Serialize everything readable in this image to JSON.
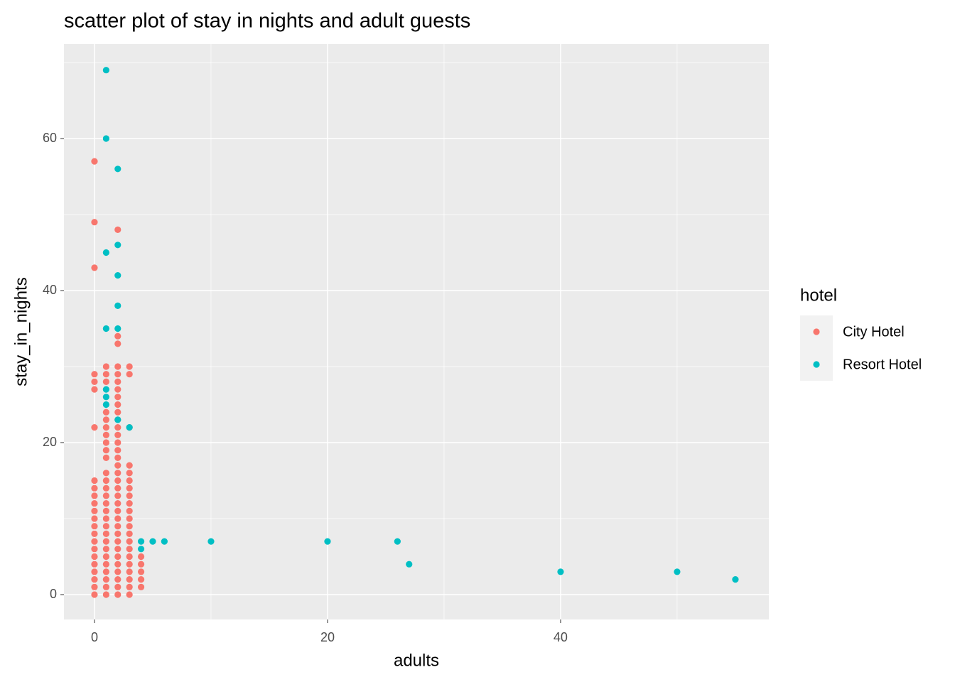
{
  "chart_data": {
    "type": "scatter",
    "title": "scatter plot of stay in nights and adult guests",
    "x_label": "adults",
    "y_label": "stay_in_nights",
    "legend_title": "hotel",
    "legend": "right",
    "grid": true,
    "xlim": [
      -2.62,
      57.87
    ],
    "ylim": [
      -3.27,
      72.43
    ],
    "xticks": [
      0,
      20,
      40
    ],
    "yticks": [
      0,
      20,
      40,
      60
    ],
    "series": [
      {
        "name": "City Hotel",
        "color": "#F8766D",
        "x": [
          0,
          0,
          0,
          0,
          0,
          0,
          0,
          0,
          0,
          0,
          0,
          0,
          0,
          0,
          0,
          0,
          0,
          0,
          0,
          0,
          0,
          0,
          0,
          1,
          1,
          1,
          1,
          1,
          1,
          1,
          1,
          1,
          1,
          1,
          1,
          1,
          1,
          1,
          1,
          1,
          1,
          1,
          1,
          1,
          1,
          1,
          1,
          1,
          1,
          1,
          2,
          2,
          2,
          2,
          2,
          2,
          2,
          2,
          2,
          2,
          2,
          2,
          2,
          2,
          2,
          2,
          2,
          2,
          2,
          2,
          2,
          2,
          2,
          2,
          2,
          2,
          2,
          2,
          2,
          2,
          2,
          2,
          2,
          2,
          3,
          3,
          3,
          3,
          3,
          3,
          3,
          3,
          3,
          3,
          3,
          3,
          3,
          3,
          3,
          3,
          3,
          3,
          3,
          3,
          3,
          4,
          4,
          4,
          4,
          4
        ],
        "y": [
          0,
          1,
          2,
          3,
          4,
          5,
          6,
          7,
          8,
          9,
          10,
          11,
          12,
          13,
          14,
          15,
          22,
          27,
          28,
          29,
          43,
          49,
          57,
          0,
          1,
          2,
          3,
          4,
          5,
          6,
          7,
          8,
          9,
          10,
          11,
          12,
          13,
          14,
          15,
          16,
          18,
          19,
          20,
          21,
          22,
          23,
          24,
          28,
          29,
          30,
          0,
          1,
          2,
          3,
          4,
          5,
          6,
          7,
          8,
          9,
          10,
          11,
          12,
          13,
          14,
          15,
          16,
          17,
          18,
          19,
          20,
          21,
          22,
          23,
          24,
          25,
          26,
          27,
          28,
          29,
          30,
          33,
          34,
          48,
          0,
          1,
          2,
          3,
          4,
          5,
          6,
          7,
          8,
          9,
          10,
          11,
          12,
          13,
          14,
          15,
          16,
          17,
          22,
          29,
          30,
          1,
          2,
          3,
          4,
          5
        ]
      },
      {
        "name": "Resort Hotel",
        "color": "#00BFC4",
        "x": [
          1,
          1,
          1,
          1,
          1,
          1,
          1,
          2,
          2,
          2,
          2,
          2,
          2,
          3,
          4,
          4,
          5,
          6,
          10,
          20,
          26,
          27,
          40,
          50,
          55
        ],
        "y": [
          25,
          26,
          27,
          35,
          45,
          60,
          69,
          23,
          35,
          38,
          42,
          46,
          56,
          22,
          6,
          7,
          7,
          7,
          7,
          7,
          7,
          4,
          3,
          3,
          2
        ]
      }
    ]
  }
}
